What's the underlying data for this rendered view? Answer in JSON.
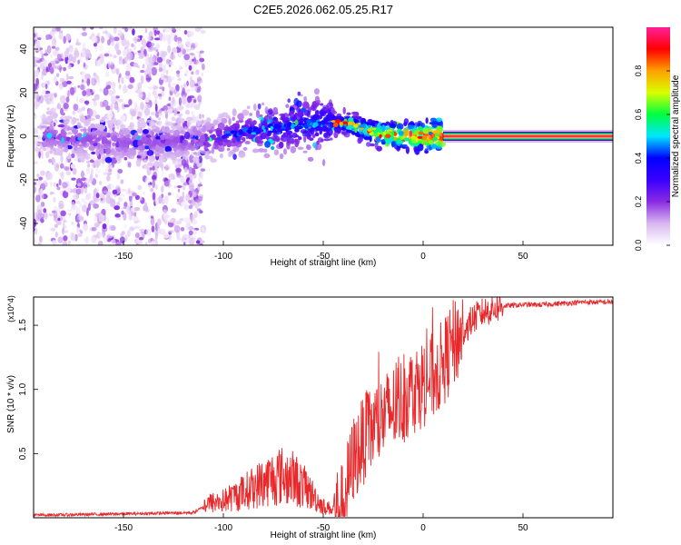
{
  "title": "C2E5.2026.062.05.25.R17",
  "chart_data": [
    {
      "type": "heatmap",
      "title": "C2E5.2026.062.05.25.R17",
      "xlabel": "Height of straight line (km)",
      "ylabel": "Frequency (Hz)",
      "xlim": [
        -195,
        95
      ],
      "ylim": [
        -50,
        50
      ],
      "xticks": [
        -150,
        -100,
        -50,
        0,
        50
      ],
      "yticks": [
        -40,
        -20,
        0,
        20,
        40
      ],
      "colorbar": {
        "label": "Normalized spectral amplitude",
        "range": [
          0.0,
          1.0
        ],
        "ticks": [
          0.0,
          0.2,
          0.4,
          0.6,
          0.8
        ],
        "colors": [
          "#ffffff",
          "#d8b8f0",
          "#8a2be2",
          "#3a00ff",
          "#0000ff",
          "#00e5ff",
          "#00ff40",
          "#d8ff00",
          "#ffa000",
          "#ff0000",
          "#ff1f9a"
        ]
      },
      "features": [
        {
          "name": "scattered noise",
          "x_range": [
            -195,
            -110
          ],
          "freq_range": [
            -50,
            50
          ],
          "amplitude": 0.05
        },
        {
          "name": "ridge",
          "points": [
            [
              -185,
              0
            ],
            [
              -150,
              -3
            ],
            [
              -110,
              -2
            ],
            [
              -90,
              2
            ],
            [
              -70,
              4
            ],
            [
              -55,
              6
            ],
            [
              -40,
              6
            ],
            [
              -30,
              3
            ],
            [
              -20,
              1
            ],
            [
              -10,
              0
            ],
            [
              0,
              0
            ],
            [
              10,
              0
            ]
          ],
          "amplitude": [
            0.12,
            0.9
          ]
        },
        {
          "name": "steady line",
          "x_range": [
            10,
            95
          ],
          "frequency": 0,
          "amplitude": 1.0
        }
      ]
    },
    {
      "type": "line",
      "xlabel": "Height of straight line (km)",
      "ylabel": "SNR (10 * v/v)",
      "y_multiplier": "(x10^4)",
      "xlim": [
        -195,
        95
      ],
      "ylim": [
        0,
        1.72
      ],
      "xticks": [
        -150,
        -100,
        -50,
        0,
        50
      ],
      "yticks": [
        0.5,
        1.0,
        1.5
      ],
      "series": [
        {
          "name": "SNR",
          "color": "#e8282a",
          "x": [
            -195,
            -150,
            -115,
            -108,
            -100,
            -90,
            -80,
            -72,
            -65,
            -58,
            -50,
            -45,
            -40,
            -38,
            -35,
            -30,
            -25,
            -20,
            -15,
            -10,
            -5,
            0,
            5,
            10,
            15,
            20,
            25,
            30,
            35,
            40,
            50,
            60,
            70,
            80,
            95
          ],
          "y": [
            0.02,
            0.03,
            0.04,
            0.1,
            0.12,
            0.18,
            0.25,
            0.3,
            0.28,
            0.2,
            0.08,
            0.06,
            0.08,
            0.25,
            0.45,
            0.6,
            0.7,
            0.78,
            0.85,
            0.92,
            1.0,
            1.05,
            1.1,
            1.2,
            1.35,
            1.45,
            1.55,
            1.6,
            1.63,
            1.65,
            1.66,
            1.66,
            1.67,
            1.68,
            1.68
          ]
        }
      ]
    }
  ]
}
